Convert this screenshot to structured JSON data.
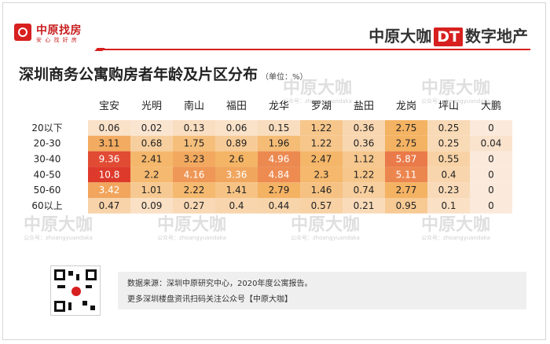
{
  "header": {
    "logo_name": "中原找房",
    "logo_slogan": "安 心 找 好 房",
    "brand_left": "中原大咖",
    "brand_dt": "DT",
    "brand_right": "数字地产"
  },
  "chart_data": {
    "type": "heatmap",
    "title": "深圳商务公寓购房者年龄及片区分布",
    "unit": "（单位：%）",
    "columns": [
      "宝安",
      "光明",
      "南山",
      "福田",
      "龙华",
      "罗湖",
      "盐田",
      "龙岗",
      "坪山",
      "大鹏"
    ],
    "rows": [
      "20以下",
      "20-30",
      "30-40",
      "40-50",
      "50-60",
      "60以上"
    ],
    "values": [
      [
        0.06,
        0.02,
        0.13,
        0.06,
        0.15,
        1.22,
        0.36,
        2.75,
        0.25,
        0
      ],
      [
        3.11,
        0.68,
        1.75,
        0.89,
        1.96,
        1.22,
        0.36,
        2.75,
        0.25,
        0.04
      ],
      [
        9.36,
        2.41,
        3.23,
        2.6,
        4.96,
        2.47,
        1.12,
        5.87,
        0.55,
        0
      ],
      [
        10.8,
        2.2,
        4.16,
        3.36,
        4.84,
        2.3,
        1.22,
        5.11,
        0.4,
        0
      ],
      [
        3.42,
        1.01,
        2.22,
        1.41,
        2.79,
        1.46,
        0.74,
        2.77,
        0.23,
        0
      ],
      [
        0.47,
        0.09,
        0.27,
        0.4,
        0.44,
        0.57,
        0.21,
        0.95,
        0.1,
        0
      ]
    ],
    "colors": {
      "low": "#fbeadb",
      "mid": "#f4b464",
      "high": "#de3a2c"
    }
  },
  "watermark": {
    "text": "中原大咖",
    "sub": "公众号：zhoangyuandaka"
  },
  "footer": {
    "source": "数据来源：深圳中原研究中心，2020年度公寓报告。",
    "more": "更多深圳楼盘资讯扫码关注公众号【中原大咖】"
  }
}
